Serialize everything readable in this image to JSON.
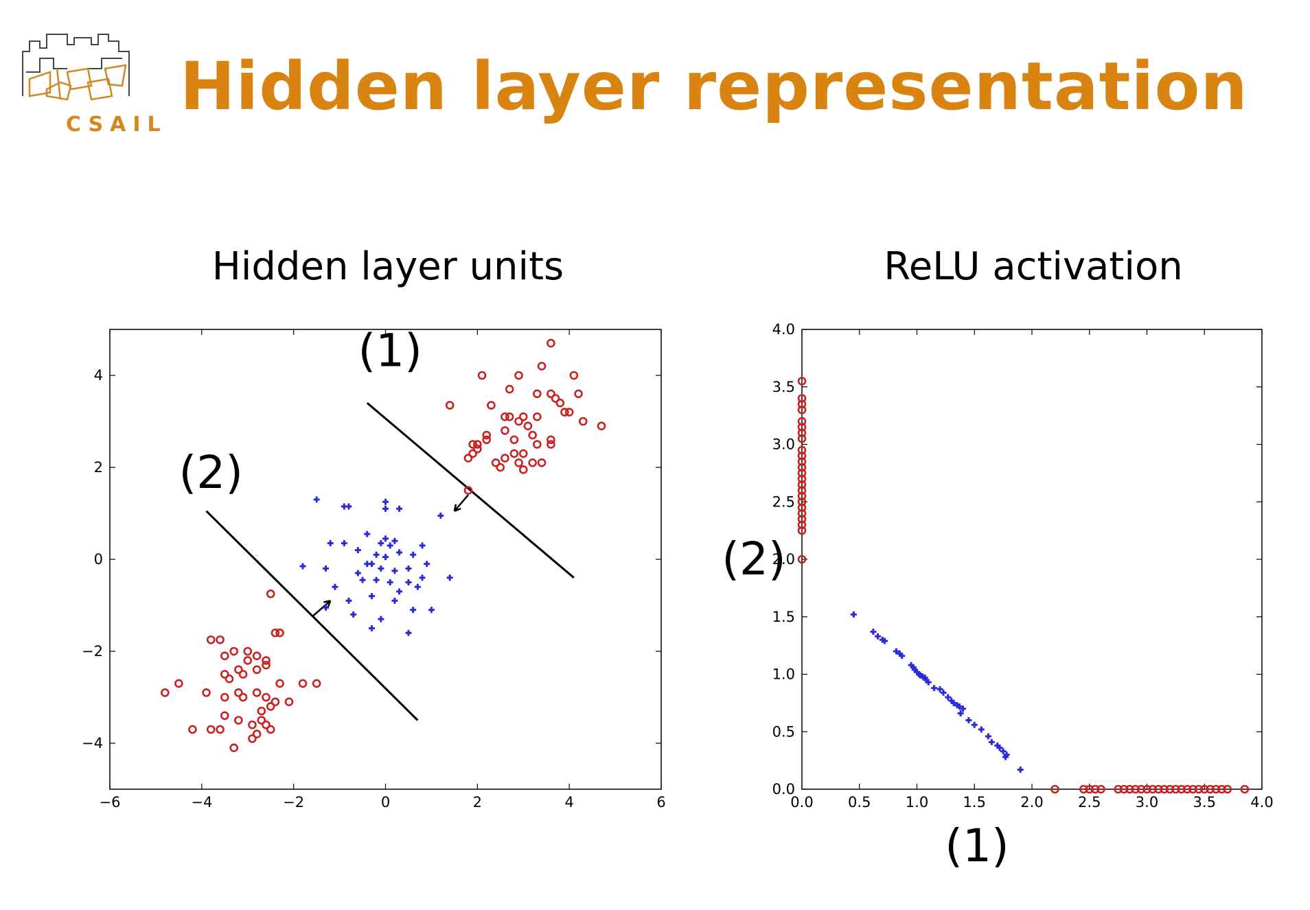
{
  "slide": {
    "title": "Hidden layer representation",
    "logo_text": "CSAIL",
    "logo_icon": "csail-building-logo"
  },
  "colors": {
    "title": "#d98310",
    "logo": "#d4861f",
    "class_circle": "#cc1f1f",
    "class_plus": "#2a2ad6",
    "axis": "#000000"
  },
  "chart_data": [
    {
      "type": "scatter",
      "title": "Hidden layer units",
      "xlabel": "",
      "ylabel": "",
      "xlim": [
        -6,
        6
      ],
      "ylim": [
        -5,
        5
      ],
      "xticks": [
        -6,
        -4,
        -2,
        0,
        2,
        4,
        6
      ],
      "yticks": [
        -4,
        -2,
        0,
        2,
        4
      ],
      "xtick_labels": [
        "−6",
        "−4",
        "−2",
        "0",
        "2",
        "4",
        "6"
      ],
      "ytick_labels": [
        "−4",
        "−2",
        "0",
        "2",
        "4"
      ],
      "grid": false,
      "series": [
        {
          "marker": "circle",
          "color": "#cc1f1f",
          "points": [
            [
              3.6,
              4.7
            ],
            [
              2.1,
              4.0
            ],
            [
              2.9,
              4.0
            ],
            [
              3.4,
              4.2
            ],
            [
              4.1,
              4.0
            ],
            [
              2.7,
              3.7
            ],
            [
              3.3,
              3.6
            ],
            [
              3.6,
              3.6
            ],
            [
              3.7,
              3.5
            ],
            [
              1.4,
              3.35
            ],
            [
              2.3,
              3.35
            ],
            [
              3.8,
              3.4
            ],
            [
              4.2,
              3.6
            ],
            [
              2.7,
              3.1
            ],
            [
              3.0,
              3.1
            ],
            [
              3.3,
              3.1
            ],
            [
              2.6,
              3.1
            ],
            [
              3.9,
              3.2
            ],
            [
              4.0,
              3.2
            ],
            [
              4.3,
              3.0
            ],
            [
              2.9,
              3.0
            ],
            [
              4.7,
              2.9
            ],
            [
              2.2,
              2.7
            ],
            [
              2.6,
              2.8
            ],
            [
              3.2,
              2.7
            ],
            [
              3.1,
              2.9
            ],
            [
              2.8,
              2.6
            ],
            [
              3.6,
              2.6
            ],
            [
              3.6,
              2.5
            ],
            [
              1.9,
              2.5
            ],
            [
              2.2,
              2.6
            ],
            [
              2.0,
              2.5
            ],
            [
              3.3,
              2.5
            ],
            [
              1.9,
              2.3
            ],
            [
              2.8,
              2.3
            ],
            [
              3.0,
              2.3
            ],
            [
              2.6,
              2.2
            ],
            [
              3.2,
              2.1
            ],
            [
              2.9,
              2.1
            ],
            [
              3.4,
              2.1
            ],
            [
              2.4,
              2.1
            ],
            [
              2.5,
              2.0
            ],
            [
              2.0,
              2.4
            ],
            [
              1.8,
              2.2
            ],
            [
              3.0,
              1.95
            ],
            [
              1.8,
              1.5
            ],
            [
              -2.5,
              -0.75
            ],
            [
              -3.8,
              -1.75
            ],
            [
              -3.6,
              -1.75
            ],
            [
              -2.4,
              -1.6
            ],
            [
              -2.3,
              -1.6
            ],
            [
              -3.5,
              -2.1
            ],
            [
              -3.3,
              -2.0
            ],
            [
              -3.0,
              -2.0
            ],
            [
              -3.0,
              -2.2
            ],
            [
              -2.8,
              -2.1
            ],
            [
              -2.6,
              -2.2
            ],
            [
              -3.5,
              -2.5
            ],
            [
              -3.2,
              -2.4
            ],
            [
              -3.1,
              -2.5
            ],
            [
              -2.8,
              -2.4
            ],
            [
              -2.6,
              -2.3
            ],
            [
              -4.5,
              -2.7
            ],
            [
              -2.3,
              -2.7
            ],
            [
              -1.8,
              -2.7
            ],
            [
              -1.5,
              -2.7
            ],
            [
              -3.4,
              -2.6
            ],
            [
              -3.9,
              -2.9
            ],
            [
              -3.2,
              -2.9
            ],
            [
              -2.8,
              -2.9
            ],
            [
              -2.6,
              -3.0
            ],
            [
              -2.4,
              -3.1
            ],
            [
              -2.1,
              -3.1
            ],
            [
              -4.8,
              -2.9
            ],
            [
              -3.5,
              -3.0
            ],
            [
              -3.1,
              -3.0
            ],
            [
              -2.5,
              -3.2
            ],
            [
              -2.7,
              -3.3
            ],
            [
              -3.5,
              -3.4
            ],
            [
              -3.2,
              -3.5
            ],
            [
              -2.9,
              -3.6
            ],
            [
              -2.7,
              -3.5
            ],
            [
              -2.6,
              -3.6
            ],
            [
              -2.5,
              -3.7
            ],
            [
              -4.2,
              -3.7
            ],
            [
              -3.8,
              -3.7
            ],
            [
              -3.6,
              -3.7
            ],
            [
              -2.9,
              -3.9
            ],
            [
              -2.8,
              -3.8
            ],
            [
              -3.3,
              -4.1
            ]
          ]
        },
        {
          "marker": "plus",
          "color": "#2a2ad6",
          "points": [
            [
              -1.5,
              1.3
            ],
            [
              -0.9,
              1.15
            ],
            [
              -0.8,
              1.15
            ],
            [
              0.0,
              1.25
            ],
            [
              0.0,
              1.1
            ],
            [
              0.3,
              1.1
            ],
            [
              1.2,
              0.95
            ],
            [
              -1.2,
              0.35
            ],
            [
              -0.9,
              0.35
            ],
            [
              -0.4,
              0.55
            ],
            [
              -0.1,
              0.35
            ],
            [
              0.0,
              0.45
            ],
            [
              0.2,
              0.4
            ],
            [
              0.1,
              0.3
            ],
            [
              0.8,
              0.3
            ],
            [
              -0.6,
              0.2
            ],
            [
              -0.2,
              0.1
            ],
            [
              0.0,
              0.05
            ],
            [
              0.3,
              0.15
            ],
            [
              0.6,
              0.1
            ],
            [
              -1.8,
              -0.15
            ],
            [
              -1.3,
              -0.2
            ],
            [
              -0.6,
              -0.3
            ],
            [
              -0.3,
              -0.1
            ],
            [
              -0.1,
              -0.2
            ],
            [
              0.2,
              -0.25
            ],
            [
              0.5,
              -0.2
            ],
            [
              0.9,
              -0.1
            ],
            [
              1.4,
              -0.4
            ],
            [
              -1.1,
              -0.6
            ],
            [
              -0.5,
              -0.45
            ],
            [
              -0.2,
              -0.45
            ],
            [
              0.1,
              -0.5
            ],
            [
              0.5,
              -0.5
            ],
            [
              0.7,
              -0.6
            ],
            [
              -0.8,
              -0.9
            ],
            [
              -1.3,
              -1.05
            ],
            [
              -0.3,
              -0.8
            ],
            [
              0.2,
              -0.9
            ],
            [
              0.6,
              -1.1
            ],
            [
              1.0,
              -1.1
            ],
            [
              -0.7,
              -1.2
            ],
            [
              -0.3,
              -1.5
            ],
            [
              0.5,
              -1.6
            ],
            [
              -0.1,
              -1.3
            ],
            [
              0.3,
              -0.7
            ],
            [
              0.8,
              -0.4
            ],
            [
              -0.4,
              -0.1
            ]
          ]
        }
      ],
      "annotations": [
        {
          "text": "(1)",
          "x": 0.1,
          "y": 4.2
        },
        {
          "text": "(2)",
          "x": -3.8,
          "y": 1.55
        }
      ],
      "lines": [
        {
          "name": "separator-1",
          "x1": -0.4,
          "y1": 3.4,
          "x2": 4.1,
          "y2": -0.4
        },
        {
          "name": "separator-2",
          "x1": -3.9,
          "y1": 1.05,
          "x2": 0.7,
          "y2": -3.5
        }
      ],
      "arrows": [
        {
          "name": "normal-arrow-1",
          "x1": 1.8,
          "y1": 1.4,
          "x2": 1.5,
          "y2": 1.05
        },
        {
          "name": "normal-arrow-2",
          "x1": -1.6,
          "y1": -1.25,
          "x2": -1.2,
          "y2": -0.9
        }
      ]
    },
    {
      "type": "scatter",
      "title": "ReLU activation",
      "xlabel": "(1)",
      "ylabel": "(2)",
      "xlim": [
        0,
        4
      ],
      "ylim": [
        0,
        4
      ],
      "xticks": [
        0,
        0.5,
        1,
        1.5,
        2,
        2.5,
        3,
        3.5,
        4
      ],
      "yticks": [
        0,
        0.5,
        1,
        1.5,
        2,
        2.5,
        3,
        3.5,
        4
      ],
      "xtick_labels": [
        "0.0",
        "0.5",
        "1.0",
        "1.5",
        "2.0",
        "2.5",
        "3.0",
        "3.5",
        "4.0"
      ],
      "ytick_labels": [
        "0.0",
        "0.5",
        "1.0",
        "1.5",
        "2.0",
        "2.5",
        "3.0",
        "3.5",
        "4.0"
      ],
      "grid": false,
      "series": [
        {
          "marker": "circle",
          "color": "#cc1f1f",
          "points": [
            [
              0,
              3.55
            ],
            [
              0,
              3.4
            ],
            [
              0,
              3.35
            ],
            [
              0,
              3.3
            ],
            [
              0,
              3.2
            ],
            [
              0,
              3.15
            ],
            [
              0,
              3.1
            ],
            [
              0,
              3.05
            ],
            [
              0,
              2.95
            ],
            [
              0,
              2.9
            ],
            [
              0,
              2.85
            ],
            [
              0,
              2.8
            ],
            [
              0,
              2.75
            ],
            [
              0,
              2.7
            ],
            [
              0,
              2.65
            ],
            [
              0,
              2.6
            ],
            [
              0,
              2.55
            ],
            [
              0,
              2.5
            ],
            [
              0,
              2.45
            ],
            [
              0,
              2.4
            ],
            [
              0,
              2.35
            ],
            [
              0,
              2.3
            ],
            [
              0,
              2.25
            ],
            [
              0,
              2.0
            ],
            [
              2.2,
              0
            ],
            [
              2.45,
              0
            ],
            [
              2.5,
              0
            ],
            [
              2.55,
              0
            ],
            [
              2.6,
              0
            ],
            [
              2.75,
              0
            ],
            [
              2.8,
              0
            ],
            [
              2.85,
              0
            ],
            [
              2.9,
              0
            ],
            [
              2.95,
              0
            ],
            [
              3.0,
              0
            ],
            [
              3.05,
              0
            ],
            [
              3.1,
              0
            ],
            [
              3.15,
              0
            ],
            [
              3.2,
              0
            ],
            [
              3.25,
              0
            ],
            [
              3.3,
              0
            ],
            [
              3.35,
              0
            ],
            [
              3.4,
              0
            ],
            [
              3.45,
              0
            ],
            [
              3.5,
              0
            ],
            [
              3.55,
              0
            ],
            [
              3.6,
              0
            ],
            [
              3.65,
              0
            ],
            [
              3.7,
              0
            ],
            [
              3.85,
              0
            ]
          ]
        },
        {
          "marker": "plus",
          "color": "#2a2ad6",
          "points": [
            [
              0.45,
              1.52
            ],
            [
              0.62,
              1.37
            ],
            [
              0.66,
              1.33
            ],
            [
              0.7,
              1.3
            ],
            [
              0.72,
              1.29
            ],
            [
              0.82,
              1.2
            ],
            [
              0.85,
              1.18
            ],
            [
              0.87,
              1.16
            ],
            [
              0.95,
              1.08
            ],
            [
              0.97,
              1.06
            ],
            [
              0.98,
              1.04
            ],
            [
              1.0,
              1.02
            ],
            [
              1.02,
              1.0
            ],
            [
              1.03,
              0.99
            ],
            [
              1.05,
              0.98
            ],
            [
              1.07,
              0.97
            ],
            [
              1.08,
              0.95
            ],
            [
              1.1,
              0.93
            ],
            [
              1.15,
              0.88
            ],
            [
              1.2,
              0.87
            ],
            [
              1.23,
              0.84
            ],
            [
              1.27,
              0.8
            ],
            [
              1.3,
              0.77
            ],
            [
              1.32,
              0.75
            ],
            [
              1.35,
              0.73
            ],
            [
              1.37,
              0.72
            ],
            [
              1.4,
              0.7
            ],
            [
              1.38,
              0.66
            ],
            [
              1.45,
              0.6
            ],
            [
              1.5,
              0.56
            ],
            [
              1.56,
              0.52
            ],
            [
              1.62,
              0.46
            ],
            [
              1.65,
              0.41
            ],
            [
              1.7,
              0.38
            ],
            [
              1.72,
              0.36
            ],
            [
              1.75,
              0.33
            ],
            [
              1.78,
              0.3
            ],
            [
              1.77,
              0.28
            ],
            [
              1.9,
              0.17
            ]
          ]
        }
      ]
    }
  ]
}
